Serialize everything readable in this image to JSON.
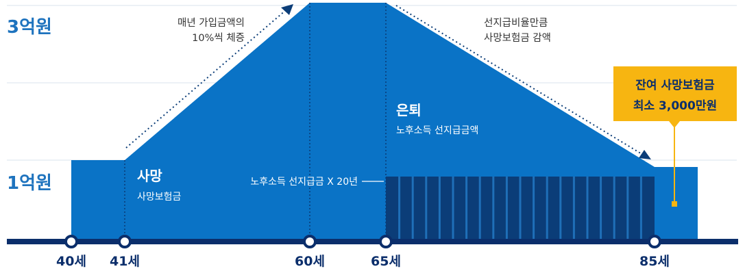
{
  "y_labels": {
    "top": "3억원",
    "bottom": "1억원"
  },
  "notes": {
    "increase_line1": "매년 가입금액의",
    "increase_line2": "10%씩 체증",
    "decrease_line1": "선지급비율만큼",
    "decrease_line2": "사망보험금 감액"
  },
  "regions": {
    "death_title": "사망",
    "death_sub": "사망보험금",
    "retire_title": "은퇴",
    "retire_sub": "노후소득 선지급금액",
    "annuity_label": "노후소득 선지급금 X 20년"
  },
  "callout": {
    "line1": "잔여 사망보험금",
    "line2": "최소 3,000만원"
  },
  "ages": [
    "40세",
    "41세",
    "60세",
    "65세",
    "85세"
  ],
  "colors": {
    "main_blue": "#0a73c6",
    "dark_navy": "#0b3d78",
    "axis": "#0b2e6b",
    "callout_bg": "#f7b511",
    "label_blue": "#1e73be"
  }
}
